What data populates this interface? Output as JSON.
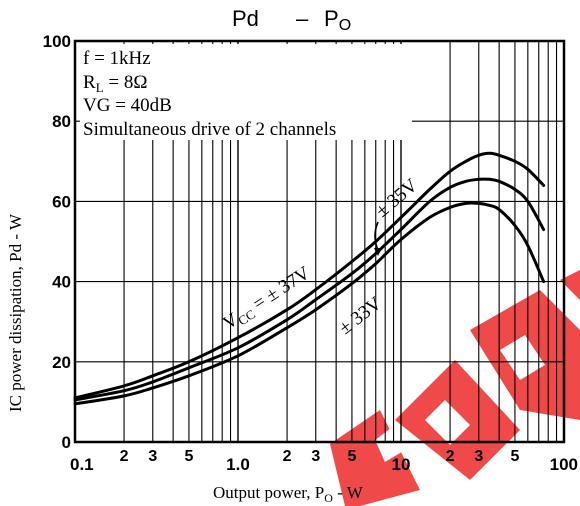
{
  "chart_data": {
    "type": "line",
    "title_main": "Pd",
    "title_dash": "–",
    "title_sub_main": "P",
    "title_sub_sub": "O",
    "xlabel_main": "Output power, P",
    "xlabel_sub": "O",
    "xlabel_unit": " - W",
    "ylabel": "IC power dissipation, Pd - W",
    "x_scale": "log",
    "xlim": [
      0.1,
      100
    ],
    "ylim": [
      0,
      100
    ],
    "grid": true,
    "x_major_ticks": [
      {
        "value": 0.1,
        "label": "0.1"
      },
      {
        "value": 1,
        "label": "1.0"
      },
      {
        "value": 10,
        "label": "10"
      },
      {
        "value": 100,
        "label": "100"
      }
    ],
    "x_minor_ticks": [
      {
        "value": 0.2,
        "label": "2"
      },
      {
        "value": 0.3,
        "label": "3"
      },
      {
        "value": 0.5,
        "label": "5"
      },
      {
        "value": 2,
        "label": "2"
      },
      {
        "value": 3,
        "label": "3"
      },
      {
        "value": 5,
        "label": "5"
      },
      {
        "value": 20,
        "label": "2"
      },
      {
        "value": 30,
        "label": "3"
      },
      {
        "value": 50,
        "label": "5"
      }
    ],
    "y_ticks": [
      {
        "value": 0,
        "label": "0"
      },
      {
        "value": 20,
        "label": "20"
      },
      {
        "value": 40,
        "label": "40"
      },
      {
        "value": 60,
        "label": "60"
      },
      {
        "value": 80,
        "label": "80"
      },
      {
        "value": 100,
        "label": "100"
      }
    ],
    "conditions": {
      "freq": "f = 1kHz",
      "load_main": "R",
      "load_sub": "L",
      "load_value": " = 8Ω",
      "gain": "VG = 40dB",
      "drive": "Simultaneous drive of 2 channels"
    },
    "series": [
      {
        "name": "± 37V",
        "x": [
          0.1,
          0.2,
          0.3,
          0.5,
          1,
          2,
          3,
          5,
          7,
          10,
          15,
          20,
          25,
          30,
          35,
          40,
          50,
          60,
          75
        ],
        "y": [
          11,
          14,
          16.5,
          20,
          26,
          33,
          38,
          45,
          50,
          56,
          63,
          67.5,
          70,
          71.5,
          72,
          71.5,
          70,
          68,
          64
        ]
      },
      {
        "name": "± 35V",
        "x": [
          0.1,
          0.2,
          0.3,
          0.5,
          1,
          2,
          3,
          5,
          7,
          10,
          15,
          20,
          25,
          30,
          35,
          40,
          50,
          60,
          75
        ],
        "y": [
          10.5,
          12.8,
          15,
          18.5,
          23.5,
          30.5,
          35.5,
          42,
          47,
          53,
          60,
          63.5,
          65,
          65.5,
          65.5,
          65,
          63,
          60,
          53
        ]
      },
      {
        "name": "± 33V",
        "x": [
          0.1,
          0.2,
          0.3,
          0.5,
          1,
          2,
          3,
          5,
          7,
          10,
          15,
          20,
          25,
          30,
          35,
          40,
          50,
          60,
          75
        ],
        "y": [
          9.5,
          11.5,
          13.5,
          16.5,
          21.5,
          28.5,
          33,
          39.5,
          44.5,
          50.5,
          56,
          58.5,
          59.5,
          59.5,
          59,
          58,
          54,
          49,
          40
        ]
      }
    ],
    "series_labels": {
      "v37_prefix": "V",
      "v37_sub": "CC",
      "v37_value": " = ± 37V",
      "v35": "± 35V",
      "v33": "± 33V"
    }
  }
}
